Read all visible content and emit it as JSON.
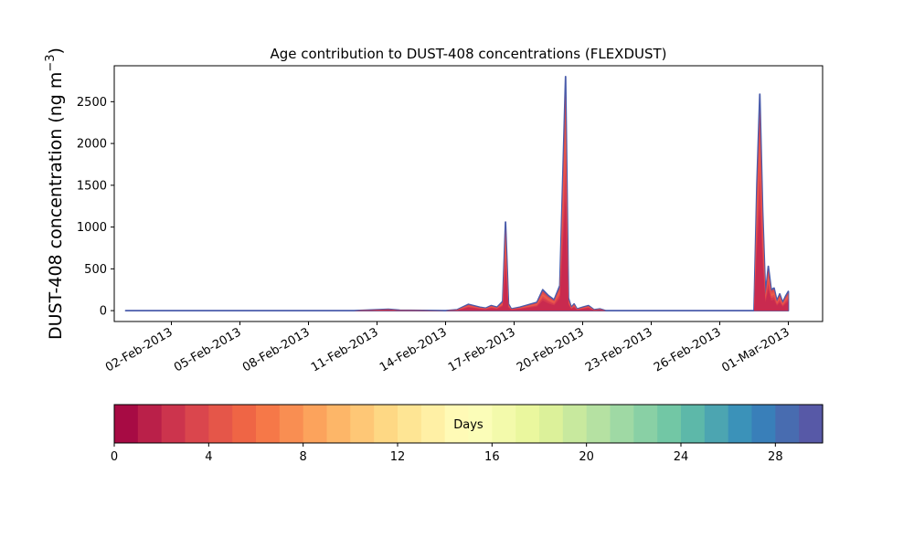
{
  "chart_data": {
    "type": "area",
    "title": "Age contribution to DUST-408 concentrations (FLEXDUST)",
    "ylabel_main": "DUST-408 concentration (ng m",
    "ylabel_sup": "−3",
    "ylabel_close": ")",
    "xlabel": "",
    "ylim": [
      -130,
      2930
    ],
    "xlim": [
      "2013-01-30T12:00",
      "2013-03-02T12:00"
    ],
    "yticks": [
      0,
      500,
      1000,
      1500,
      2000,
      2500
    ],
    "xticks": [
      {
        "date": "2013-02-02",
        "label": "02-Feb-2013"
      },
      {
        "date": "2013-02-05",
        "label": "05-Feb-2013"
      },
      {
        "date": "2013-02-08",
        "label": "08-Feb-2013"
      },
      {
        "date": "2013-02-11",
        "label": "11-Feb-2013"
      },
      {
        "date": "2013-02-14",
        "label": "14-Feb-2013"
      },
      {
        "date": "2013-02-17",
        "label": "17-Feb-2013"
      },
      {
        "date": "2013-02-20",
        "label": "20-Feb-2013"
      },
      {
        "date": "2013-02-23",
        "label": "23-Feb-2013"
      },
      {
        "date": "2013-02-26",
        "label": "26-Feb-2013"
      },
      {
        "date": "2013-03-01",
        "label": "01-Mar-2013"
      }
    ],
    "total_series": {
      "x": [
        "2013-01-31T00:00",
        "2013-02-05T00:00",
        "2013-02-10T00:00",
        "2013-02-11T12:00",
        "2013-02-12T00:00",
        "2013-02-14T00:00",
        "2013-02-14T12:00",
        "2013-02-15T00:00",
        "2013-02-15T12:00",
        "2013-02-15T18:00",
        "2013-02-16T00:00",
        "2013-02-16T06:00",
        "2013-02-16T12:00",
        "2013-02-16T15:00",
        "2013-02-16T18:00",
        "2013-02-16T21:00",
        "2013-02-17T06:00",
        "2013-02-17T12:00",
        "2013-02-18T00:00",
        "2013-02-18T06:00",
        "2013-02-18T12:00",
        "2013-02-18T18:00",
        "2013-02-19T00:00",
        "2013-02-19T06:00",
        "2013-02-19T09:00",
        "2013-02-19T12:00",
        "2013-02-19T15:00",
        "2013-02-19T18:00",
        "2013-02-20T00:00",
        "2013-02-20T06:00",
        "2013-02-20T12:00",
        "2013-02-20T18:00",
        "2013-02-21T00:00",
        "2013-02-22T00:00",
        "2013-02-24T00:00",
        "2013-02-25T00:00",
        "2013-02-26T00:00",
        "2013-02-27T00:00",
        "2013-02-27T12:00",
        "2013-02-27T15:00",
        "2013-02-27T18:00",
        "2013-02-27T21:00",
        "2013-02-28T00:00",
        "2013-02-28T03:00",
        "2013-02-28T06:00",
        "2013-02-28T09:00",
        "2013-02-28T12:00",
        "2013-02-28T15:00",
        "2013-02-28T18:00",
        "2013-02-28T21:00",
        "2013-03-01T00:00"
      ],
      "y": [
        0,
        0,
        0,
        15,
        5,
        0,
        10,
        75,
        40,
        30,
        60,
        40,
        110,
        1060,
        80,
        20,
        40,
        60,
        100,
        250,
        180,
        130,
        300,
        2800,
        150,
        40,
        80,
        20,
        40,
        60,
        10,
        20,
        0,
        0,
        0,
        0,
        0,
        0,
        0,
        1500,
        2590,
        1200,
        200,
        530,
        250,
        270,
        120,
        200,
        100,
        170,
        230
      ]
    },
    "colorbar": {
      "label": "Days",
      "min": 0,
      "max": 30,
      "ticks": [
        0,
        4,
        8,
        12,
        16,
        20,
        24,
        28
      ],
      "bands": 30
    },
    "colors": {
      "axis": "#000000",
      "outline": "#4a5cab",
      "band_low": "#9e0142",
      "band_mid": "#ffffbf",
      "band_high": "#5e4fa2"
    }
  }
}
